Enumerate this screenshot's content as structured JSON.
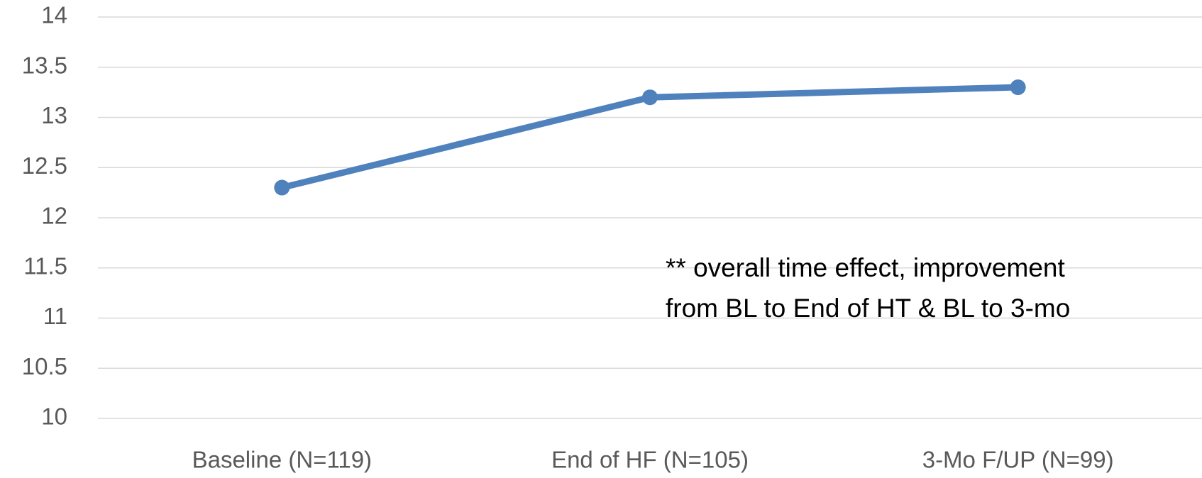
{
  "chart_data": {
    "type": "line",
    "categories": [
      "Baseline (N=119)",
      "End of HF (N=105)",
      "3-Mo F/UP (N=99)"
    ],
    "values": [
      12.3,
      13.2,
      13.3
    ],
    "color": "#4f81bd",
    "ylim": [
      10,
      14
    ],
    "yticks": [
      10,
      10.5,
      11,
      11.5,
      12,
      12.5,
      13,
      13.5,
      14
    ],
    "grid": true,
    "annotations": [
      "** overall time effect, improvement",
      "from BL to End of HT & BL to 3-mo"
    ]
  }
}
